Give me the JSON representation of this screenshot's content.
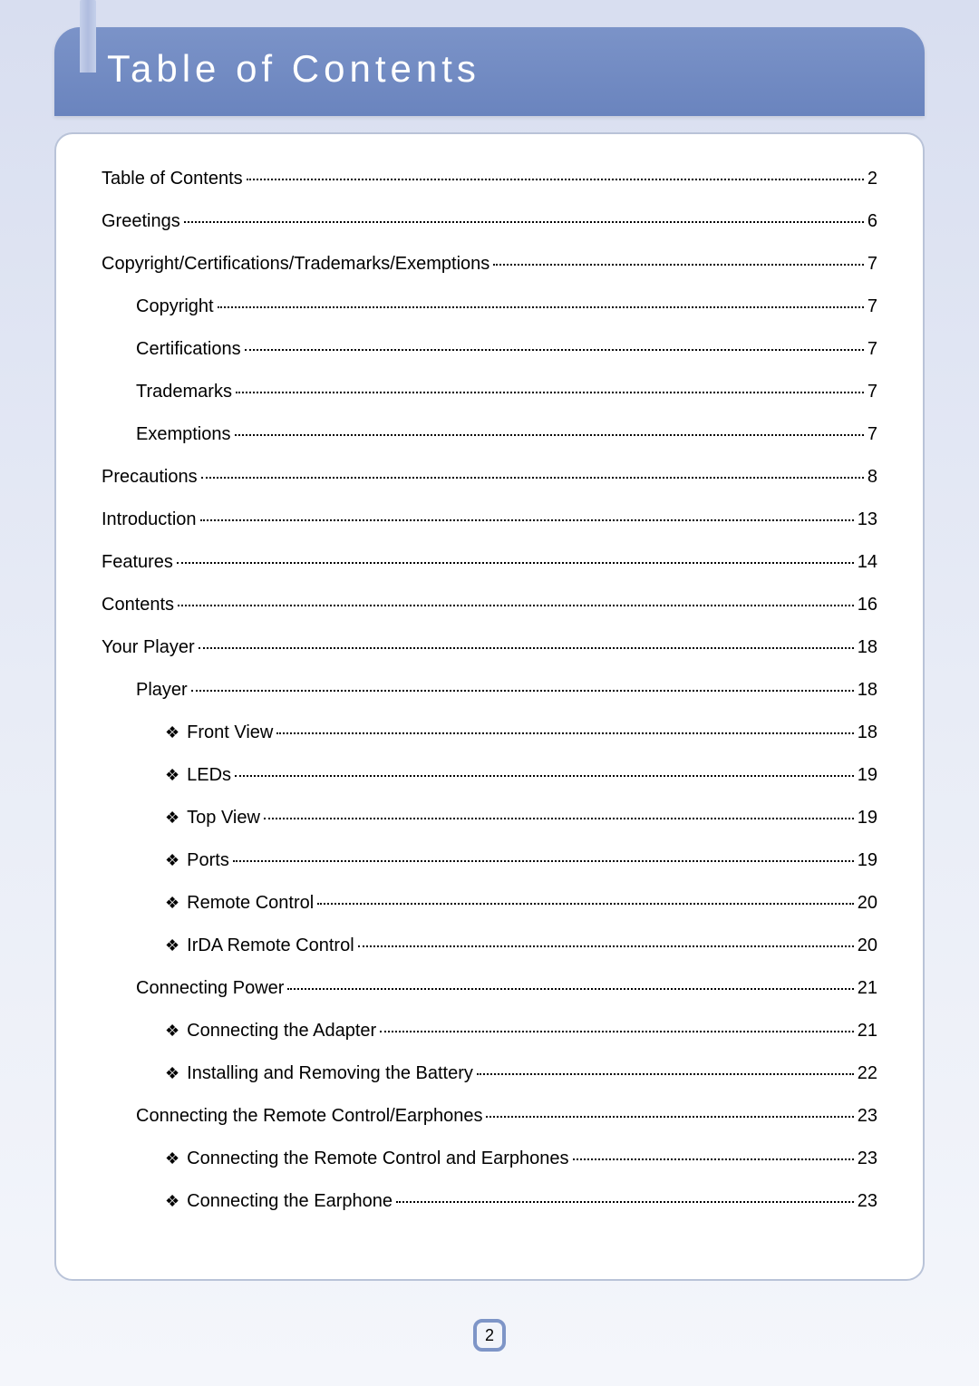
{
  "header": {
    "title": "Table of Contents",
    "banner_gradient_top": "#7b93c8",
    "banner_gradient_bottom": "#6a84be",
    "tab_color": "#b0bddf",
    "title_color": "#ffffff",
    "title_fontsize": 42,
    "title_letter_spacing": 5
  },
  "page_background": {
    "gradient_top": "#d8def0",
    "gradient_mid": "#e8ecf6",
    "gradient_bottom": "#f4f6fb"
  },
  "content_card": {
    "background": "#ffffff",
    "border_color": "#b9c3d8",
    "border_radius": 20
  },
  "toc": {
    "bullet_glyph": "❖",
    "text_color": "#000000",
    "fontsize": 20,
    "entries": [
      {
        "level": 0,
        "title": "Table of Contents",
        "page": "2",
        "bullet": false
      },
      {
        "level": 0,
        "title": "Greetings",
        "page": "6",
        "bullet": false
      },
      {
        "level": 0,
        "title": "Copyright/Certifications/Trademarks/Exemptions",
        "page": "7",
        "bullet": false
      },
      {
        "level": 1,
        "title": "Copyright",
        "page": "7",
        "bullet": false
      },
      {
        "level": 1,
        "title": "Certifications",
        "page": "7",
        "bullet": false
      },
      {
        "level": 1,
        "title": "Trademarks",
        "page": "7",
        "bullet": false
      },
      {
        "level": 1,
        "title": "Exemptions",
        "page": "7",
        "bullet": false
      },
      {
        "level": 0,
        "title": "Precautions",
        "page": "8",
        "bullet": false
      },
      {
        "level": 0,
        "title": "Introduction",
        "page": "13",
        "bullet": false
      },
      {
        "level": 0,
        "title": "Features",
        "page": "14",
        "bullet": false
      },
      {
        "level": 0,
        "title": "Contents",
        "page": "16",
        "bullet": false
      },
      {
        "level": 0,
        "title": "Your Player",
        "page": "18",
        "bullet": false
      },
      {
        "level": 1,
        "title": "Player",
        "page": "18",
        "bullet": false
      },
      {
        "level": 2,
        "title": "Front View",
        "page": "18",
        "bullet": true
      },
      {
        "level": 2,
        "title": "LEDs",
        "page": "19",
        "bullet": true
      },
      {
        "level": 2,
        "title": "Top View",
        "page": "19",
        "bullet": true
      },
      {
        "level": 2,
        "title": "Ports",
        "page": "19",
        "bullet": true
      },
      {
        "level": 2,
        "title": "Remote Control",
        "page": "20",
        "bullet": true
      },
      {
        "level": 2,
        "title": "IrDA Remote Control",
        "page": "20",
        "bullet": true
      },
      {
        "level": 1,
        "title": "Connecting Power",
        "page": "21",
        "bullet": false
      },
      {
        "level": 2,
        "title": "Connecting the Adapter",
        "page": "21",
        "bullet": true
      },
      {
        "level": 2,
        "title": "Installing and Removing the Battery",
        "page": "22",
        "bullet": true
      },
      {
        "level": 1,
        "title": "Connecting the Remote Control/Earphones",
        "page": "23",
        "bullet": false
      },
      {
        "level": 2,
        "title": "Connecting the Remote Control and Earphones",
        "page": "23",
        "bullet": true
      },
      {
        "level": 2,
        "title": "Connecting the Earphone",
        "page": "23",
        "bullet": true
      }
    ]
  },
  "page_number": {
    "value": "2",
    "border_color": "#7e95c7",
    "background": "#f2f4fa",
    "text_color": "#000000"
  }
}
